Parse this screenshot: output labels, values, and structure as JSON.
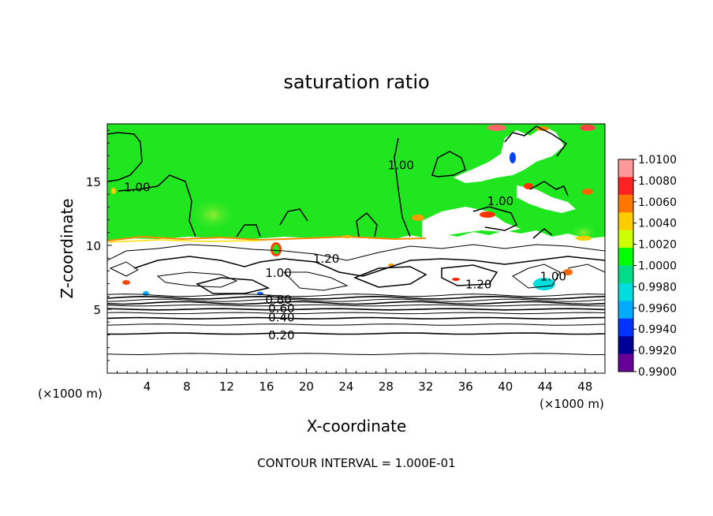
{
  "chart_data": {
    "type": "heatmap",
    "title": "saturation ratio",
    "xlabel": "X-coordinate",
    "ylabel": "Z-coordinate",
    "x_unit_left": "(×1000 m)",
    "x_unit_right": "(×1000 m)",
    "xlim": [
      0,
      50
    ],
    "ylim": [
      0,
      19.5
    ],
    "x_ticks": [
      "4",
      "8",
      "12",
      "16",
      "20",
      "24",
      "28",
      "32",
      "36",
      "40",
      "44",
      "48"
    ],
    "x_tick_values": [
      4,
      8,
      12,
      16,
      20,
      24,
      28,
      32,
      36,
      40,
      44,
      48
    ],
    "y_ticks": [
      "5",
      "10",
      "15"
    ],
    "y_tick_values": [
      5,
      10,
      15
    ],
    "contour_interval_text": "CONTOUR INTERVAL = 1.000E-01",
    "contour_labels": [
      {
        "text": "1.00",
        "x": 3.0,
        "z": 14.3
      },
      {
        "text": "1.00",
        "x": 29.5,
        "z": 16.0
      },
      {
        "text": "1.00",
        "x": 39.5,
        "z": 13.2
      },
      {
        "text": "1.00",
        "x": 44.8,
        "z": 7.3
      },
      {
        "text": "1.20",
        "x": 22.0,
        "z": 8.7
      },
      {
        "text": "1.20",
        "x": 37.3,
        "z": 6.7
      },
      {
        "text": "1.00",
        "x": 17.2,
        "z": 7.6
      },
      {
        "text": "0.80",
        "x": 17.2,
        "z": 5.5
      },
      {
        "text": "0.60",
        "x": 17.5,
        "z": 4.8
      },
      {
        "text": "0.40",
        "x": 17.5,
        "z": 4.1
      },
      {
        "text": "0.20",
        "x": 17.5,
        "z": 2.7
      }
    ],
    "lower_contours_z": [
      1.5,
      3.1,
      3.8,
      4.3,
      4.7,
      5.0,
      5.3,
      5.5,
      5.7,
      5.9,
      6.1
    ],
    "colorbar": {
      "ticks": [
        "1.0100",
        "1.0080",
        "1.0060",
        "1.0040",
        "1.0020",
        "1.0000",
        "0.9980",
        "0.9960",
        "0.9940",
        "0.9920",
        "0.9900"
      ],
      "colors": [
        "#ff9999",
        "#ff2222",
        "#ff7700",
        "#ffcc00",
        "#ccff00",
        "#00ff00",
        "#00dd88",
        "#00dddd",
        "#00aaff",
        "#0033ff",
        "#000099",
        "#660099"
      ]
    },
    "field_colors": {
      "saturated": "#1fe61f",
      "supersat_edge": "#ff8800",
      "subsat_edge": "#00bbff",
      "clear": "#ffffff"
    }
  }
}
